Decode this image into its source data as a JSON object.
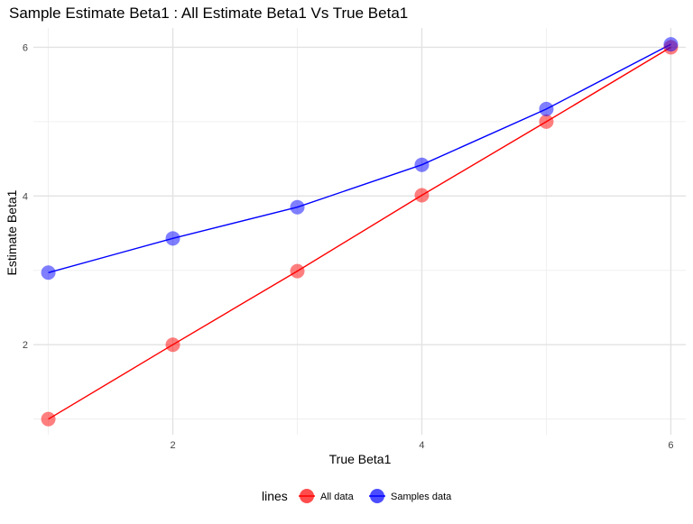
{
  "chart_data": {
    "type": "line",
    "title": "Sample Estimate Beta1 : All Estimate Beta1 Vs True Beta1",
    "xlabel": "True Beta1",
    "ylabel": "Estimate Beta1",
    "xlim": [
      0.88,
      6.12
    ],
    "ylim": [
      0.79,
      6.26
    ],
    "x_ticks": [
      2,
      4,
      6
    ],
    "y_ticks": [
      2,
      4,
      6
    ],
    "x_tick_labels": [
      "2",
      "4",
      "6"
    ],
    "y_tick_labels": [
      "2",
      "4",
      "6"
    ],
    "x_minor_gridlines": [
      1,
      3,
      5
    ],
    "y_minor_gridlines": [
      1,
      3,
      5
    ],
    "grid": true,
    "legend": {
      "title": "lines",
      "placement": "bottom",
      "entries": [
        "All data",
        "Samples data"
      ]
    },
    "series": [
      {
        "name": "All data",
        "color": "#ff0000",
        "x": [
          1,
          2,
          3,
          4,
          5,
          6
        ],
        "values": [
          1.0,
          2.0,
          2.99,
          4.01,
          5.0,
          6.0
        ]
      },
      {
        "name": "Samples data",
        "color": "#0000ff",
        "x": [
          1,
          2,
          3,
          4,
          5,
          6
        ],
        "values": [
          2.97,
          3.43,
          3.85,
          4.42,
          5.17,
          6.04
        ]
      }
    ]
  }
}
